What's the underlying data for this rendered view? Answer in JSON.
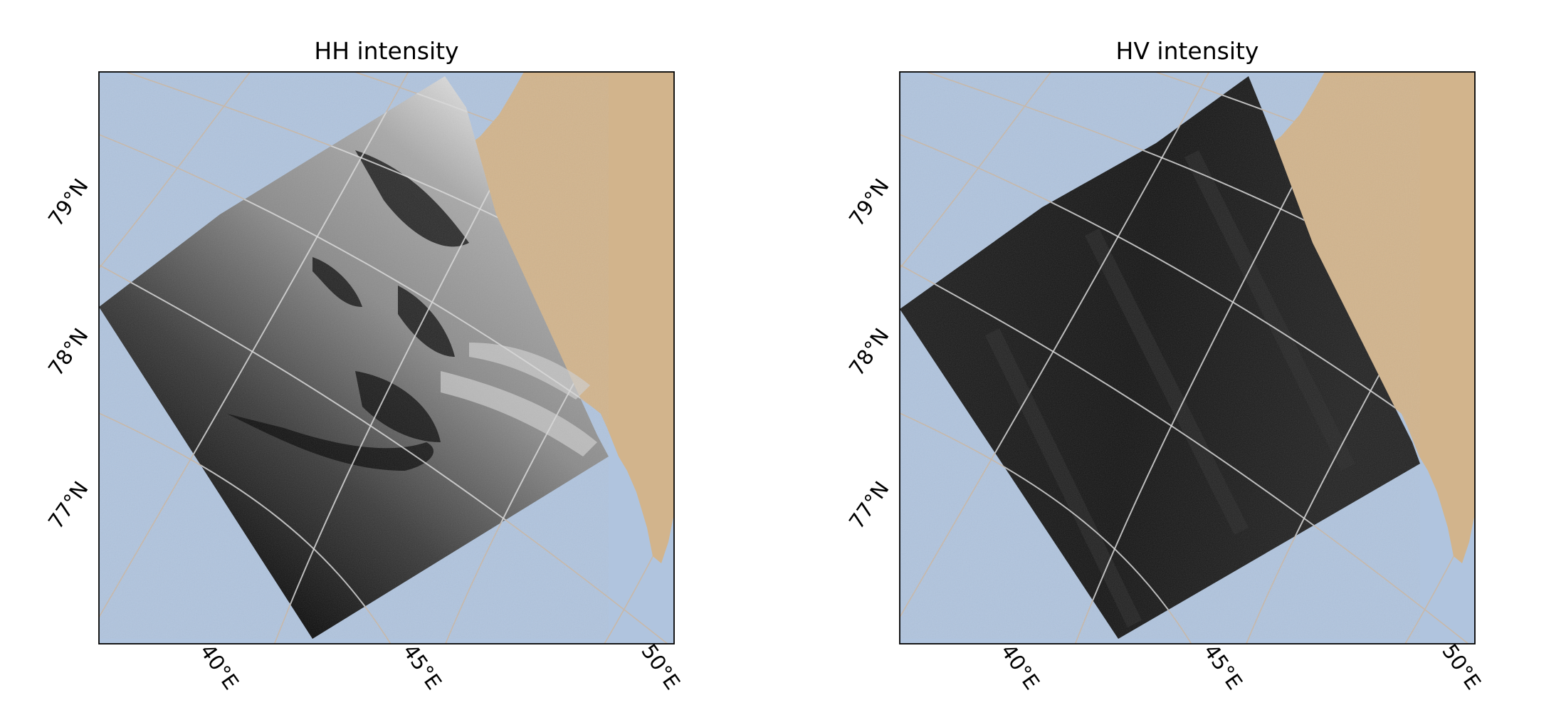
{
  "panels": [
    {
      "title": "HH intensity",
      "lat_labels": [
        "79°N",
        "78°N",
        "77°N"
      ],
      "lon_labels": [
        "40°E",
        "45°E",
        "50°E"
      ]
    },
    {
      "title": "HV intensity",
      "lat_labels": [
        "79°N",
        "78°N",
        "77°N"
      ],
      "lon_labels": [
        "40°E",
        "45°E",
        "50°E"
      ]
    }
  ],
  "colors": {
    "ocean": "#b0c4de",
    "land": "#d2b48c",
    "frame": "#000000",
    "graticule_background": "#c8b8a8",
    "graticule_over_swath": "#d8d8d8",
    "hh_swath": "grayscale-light-to-dark",
    "hv_swath": "grayscale-dark"
  }
}
